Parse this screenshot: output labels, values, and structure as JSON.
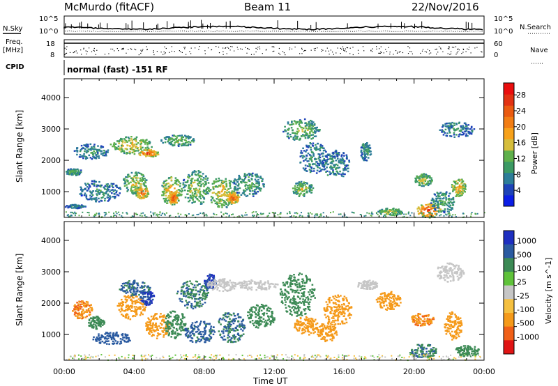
{
  "header": {
    "station": "McMurdo (fitACF)",
    "beam": "Beam 11",
    "date": "22/Nov/2016"
  },
  "left_labels": {
    "nsky": "N.Sky",
    "freq": "Freq.",
    "freq_unit": "[MHz]",
    "cpid": "CPID"
  },
  "right_labels": {
    "nsearch": "N.Search",
    "nave": "Nave"
  },
  "noise_panel": {
    "left_ticks": [
      "10^5",
      "10^0"
    ],
    "right_ticks": [
      "10^5",
      "10^0"
    ]
  },
  "freq_panel": {
    "left_ticks": [
      "18",
      "8"
    ],
    "right_ticks": [
      "60",
      "0"
    ]
  },
  "cpid_text": "normal (fast) -151 RF",
  "chart_data": [
    {
      "type": "heatmap",
      "title": "",
      "ylabel": "Slant Range [km]",
      "xlabel": "",
      "ylim": [
        180,
        4600
      ],
      "y_ticks": [
        1000,
        2000,
        3000,
        4000
      ],
      "colorbar": {
        "label": "Power [dB]",
        "range": [
          0,
          31
        ],
        "ticks": [
          4,
          8,
          12,
          16,
          20,
          24,
          28
        ],
        "colors": [
          "#0b1ee6",
          "#1e43b8",
          "#2d7d98",
          "#3c9a64",
          "#5fb04b",
          "#d6be3c",
          "#f7a11a",
          "#f27d14",
          "#ea5a10",
          "#e23212",
          "#ea0e0e"
        ]
      },
      "regions_note": "echo patches: x in hours UT, y in km, v in dB",
      "patches": [
        {
          "x": 0.5,
          "y": 1650,
          "rx": 0.5,
          "ry": 110,
          "v": 12
        },
        {
          "x": 1.5,
          "y": 2300,
          "rx": 1.0,
          "ry": 250,
          "v": 10
        },
        {
          "x": 3.8,
          "y": 2500,
          "rx": 1.2,
          "ry": 280,
          "v": 18
        },
        {
          "x": 4.8,
          "y": 2250,
          "rx": 0.6,
          "ry": 120,
          "v": 26
        },
        {
          "x": 6.5,
          "y": 2650,
          "rx": 1.0,
          "ry": 180,
          "v": 14
        },
        {
          "x": 2.0,
          "y": 1050,
          "rx": 1.2,
          "ry": 350,
          "v": 10
        },
        {
          "x": 4.0,
          "y": 1300,
          "rx": 0.7,
          "ry": 350,
          "v": 16
        },
        {
          "x": 4.4,
          "y": 1000,
          "rx": 0.4,
          "ry": 200,
          "v": 24
        },
        {
          "x": 6.1,
          "y": 1050,
          "rx": 0.6,
          "ry": 450,
          "v": 20
        },
        {
          "x": 6.2,
          "y": 800,
          "rx": 0.25,
          "ry": 200,
          "v": 27
        },
        {
          "x": 7.5,
          "y": 1150,
          "rx": 0.8,
          "ry": 550,
          "v": 15
        },
        {
          "x": 9.0,
          "y": 1000,
          "rx": 0.8,
          "ry": 500,
          "v": 18
        },
        {
          "x": 9.6,
          "y": 820,
          "rx": 0.4,
          "ry": 180,
          "v": 26
        },
        {
          "x": 10.5,
          "y": 1250,
          "rx": 0.9,
          "ry": 400,
          "v": 12
        },
        {
          "x": 13.5,
          "y": 3000,
          "rx": 1.1,
          "ry": 350,
          "v": 14
        },
        {
          "x": 13.6,
          "y": 1100,
          "rx": 0.6,
          "ry": 250,
          "v": 16
        },
        {
          "x": 14.2,
          "y": 2100,
          "rx": 0.8,
          "ry": 500,
          "v": 10
        },
        {
          "x": 15.5,
          "y": 1900,
          "rx": 0.8,
          "ry": 450,
          "v": 10
        },
        {
          "x": 17.2,
          "y": 2300,
          "rx": 0.3,
          "ry": 300,
          "v": 11
        },
        {
          "x": 18.6,
          "y": 380,
          "rx": 0.7,
          "ry": 120,
          "v": 16
        },
        {
          "x": 20.8,
          "y": 420,
          "rx": 0.7,
          "ry": 230,
          "v": 27
        },
        {
          "x": 20.5,
          "y": 1400,
          "rx": 0.5,
          "ry": 200,
          "v": 16
        },
        {
          "x": 21.6,
          "y": 700,
          "rx": 0.7,
          "ry": 350,
          "v": 12
        },
        {
          "x": 22.5,
          "y": 1150,
          "rx": 0.4,
          "ry": 300,
          "v": 20
        },
        {
          "x": 22.4,
          "y": 3000,
          "rx": 1.0,
          "ry": 250,
          "v": 10
        },
        {
          "x": 0.6,
          "y": 550,
          "rx": 0.6,
          "ry": 60,
          "v": 9
        }
      ]
    },
    {
      "type": "heatmap",
      "title": "",
      "ylabel": "Slant Range [km]",
      "xlabel": "Time UT",
      "ylim": [
        180,
        4600
      ],
      "y_ticks": [
        1000,
        2000,
        3000,
        4000
      ],
      "colorbar": {
        "label": "Velocity [m s^-1]",
        "tick_labels": [
          "1000",
          "500",
          "100",
          "25",
          "-25",
          "-100",
          "-500",
          "-1000"
        ],
        "colors": [
          "#1e2fc0",
          "#2a5aa0",
          "#3c8a55",
          "#5fc23a",
          "#c6c6c6",
          "#f5c040",
          "#f59a1a",
          "#f06018",
          "#e01414"
        ]
      },
      "patches": [
        {
          "x": 1.0,
          "y": 1800,
          "rx": 0.6,
          "ry": 300,
          "v": -300
        },
        {
          "x": 1.8,
          "y": 1400,
          "rx": 0.5,
          "ry": 200,
          "v": 150
        },
        {
          "x": 2.7,
          "y": 900,
          "rx": 1.1,
          "ry": 200,
          "v": 500
        },
        {
          "x": 3.8,
          "y": 1900,
          "rx": 0.8,
          "ry": 400,
          "v": -200
        },
        {
          "x": 4.0,
          "y": 2500,
          "rx": 0.9,
          "ry": 250,
          "v": 400
        },
        {
          "x": 4.7,
          "y": 2200,
          "rx": 0.4,
          "ry": 250,
          "v": 900
        },
        {
          "x": 5.3,
          "y": 1300,
          "rx": 0.7,
          "ry": 400,
          "v": -150
        },
        {
          "x": 6.3,
          "y": 1350,
          "rx": 0.6,
          "ry": 450,
          "v": 200
        },
        {
          "x": 7.7,
          "y": 1100,
          "rx": 0.9,
          "ry": 350,
          "v": 450
        },
        {
          "x": 7.3,
          "y": 2300,
          "rx": 0.9,
          "ry": 450,
          "v": 300
        },
        {
          "x": 8.3,
          "y": 2700,
          "rx": 0.35,
          "ry": 250,
          "v": 900
        },
        {
          "x": 9.5,
          "y": 1250,
          "rx": 0.8,
          "ry": 500,
          "v": 350
        },
        {
          "x": 9.0,
          "y": 2600,
          "rx": 0.9,
          "ry": 200,
          "v": 0
        },
        {
          "x": 11.0,
          "y": 2600,
          "rx": 1.2,
          "ry": 170,
          "v": 0
        },
        {
          "x": 11.2,
          "y": 1600,
          "rx": 0.8,
          "ry": 400,
          "v": 120
        },
        {
          "x": 13.3,
          "y": 2300,
          "rx": 1.0,
          "ry": 700,
          "v": 200
        },
        {
          "x": 13.8,
          "y": 1300,
          "rx": 0.7,
          "ry": 300,
          "v": -150
        },
        {
          "x": 15.6,
          "y": 1800,
          "rx": 0.8,
          "ry": 500,
          "v": -150
        },
        {
          "x": 15.0,
          "y": 1100,
          "rx": 0.6,
          "ry": 300,
          "v": -200
        },
        {
          "x": 17.3,
          "y": 2600,
          "rx": 0.6,
          "ry": 150,
          "v": 0
        },
        {
          "x": 18.5,
          "y": 2100,
          "rx": 0.7,
          "ry": 300,
          "v": -200
        },
        {
          "x": 20.4,
          "y": 1500,
          "rx": 0.7,
          "ry": 200,
          "v": -300
        },
        {
          "x": 20.5,
          "y": 500,
          "rx": 0.8,
          "ry": 220,
          "v": 300
        },
        {
          "x": 22.2,
          "y": 1300,
          "rx": 0.5,
          "ry": 450,
          "v": -250
        },
        {
          "x": 22.0,
          "y": 3000,
          "rx": 0.8,
          "ry": 300,
          "v": 0
        },
        {
          "x": 23.0,
          "y": 500,
          "rx": 0.7,
          "ry": 180,
          "v": 250
        }
      ]
    }
  ],
  "x_axis": {
    "range_hours": [
      0,
      24
    ],
    "tick_labels": [
      "00:00",
      "04:00",
      "08:00",
      "12:00",
      "16:00",
      "20:00",
      "00:00"
    ],
    "label": "Time UT"
  }
}
